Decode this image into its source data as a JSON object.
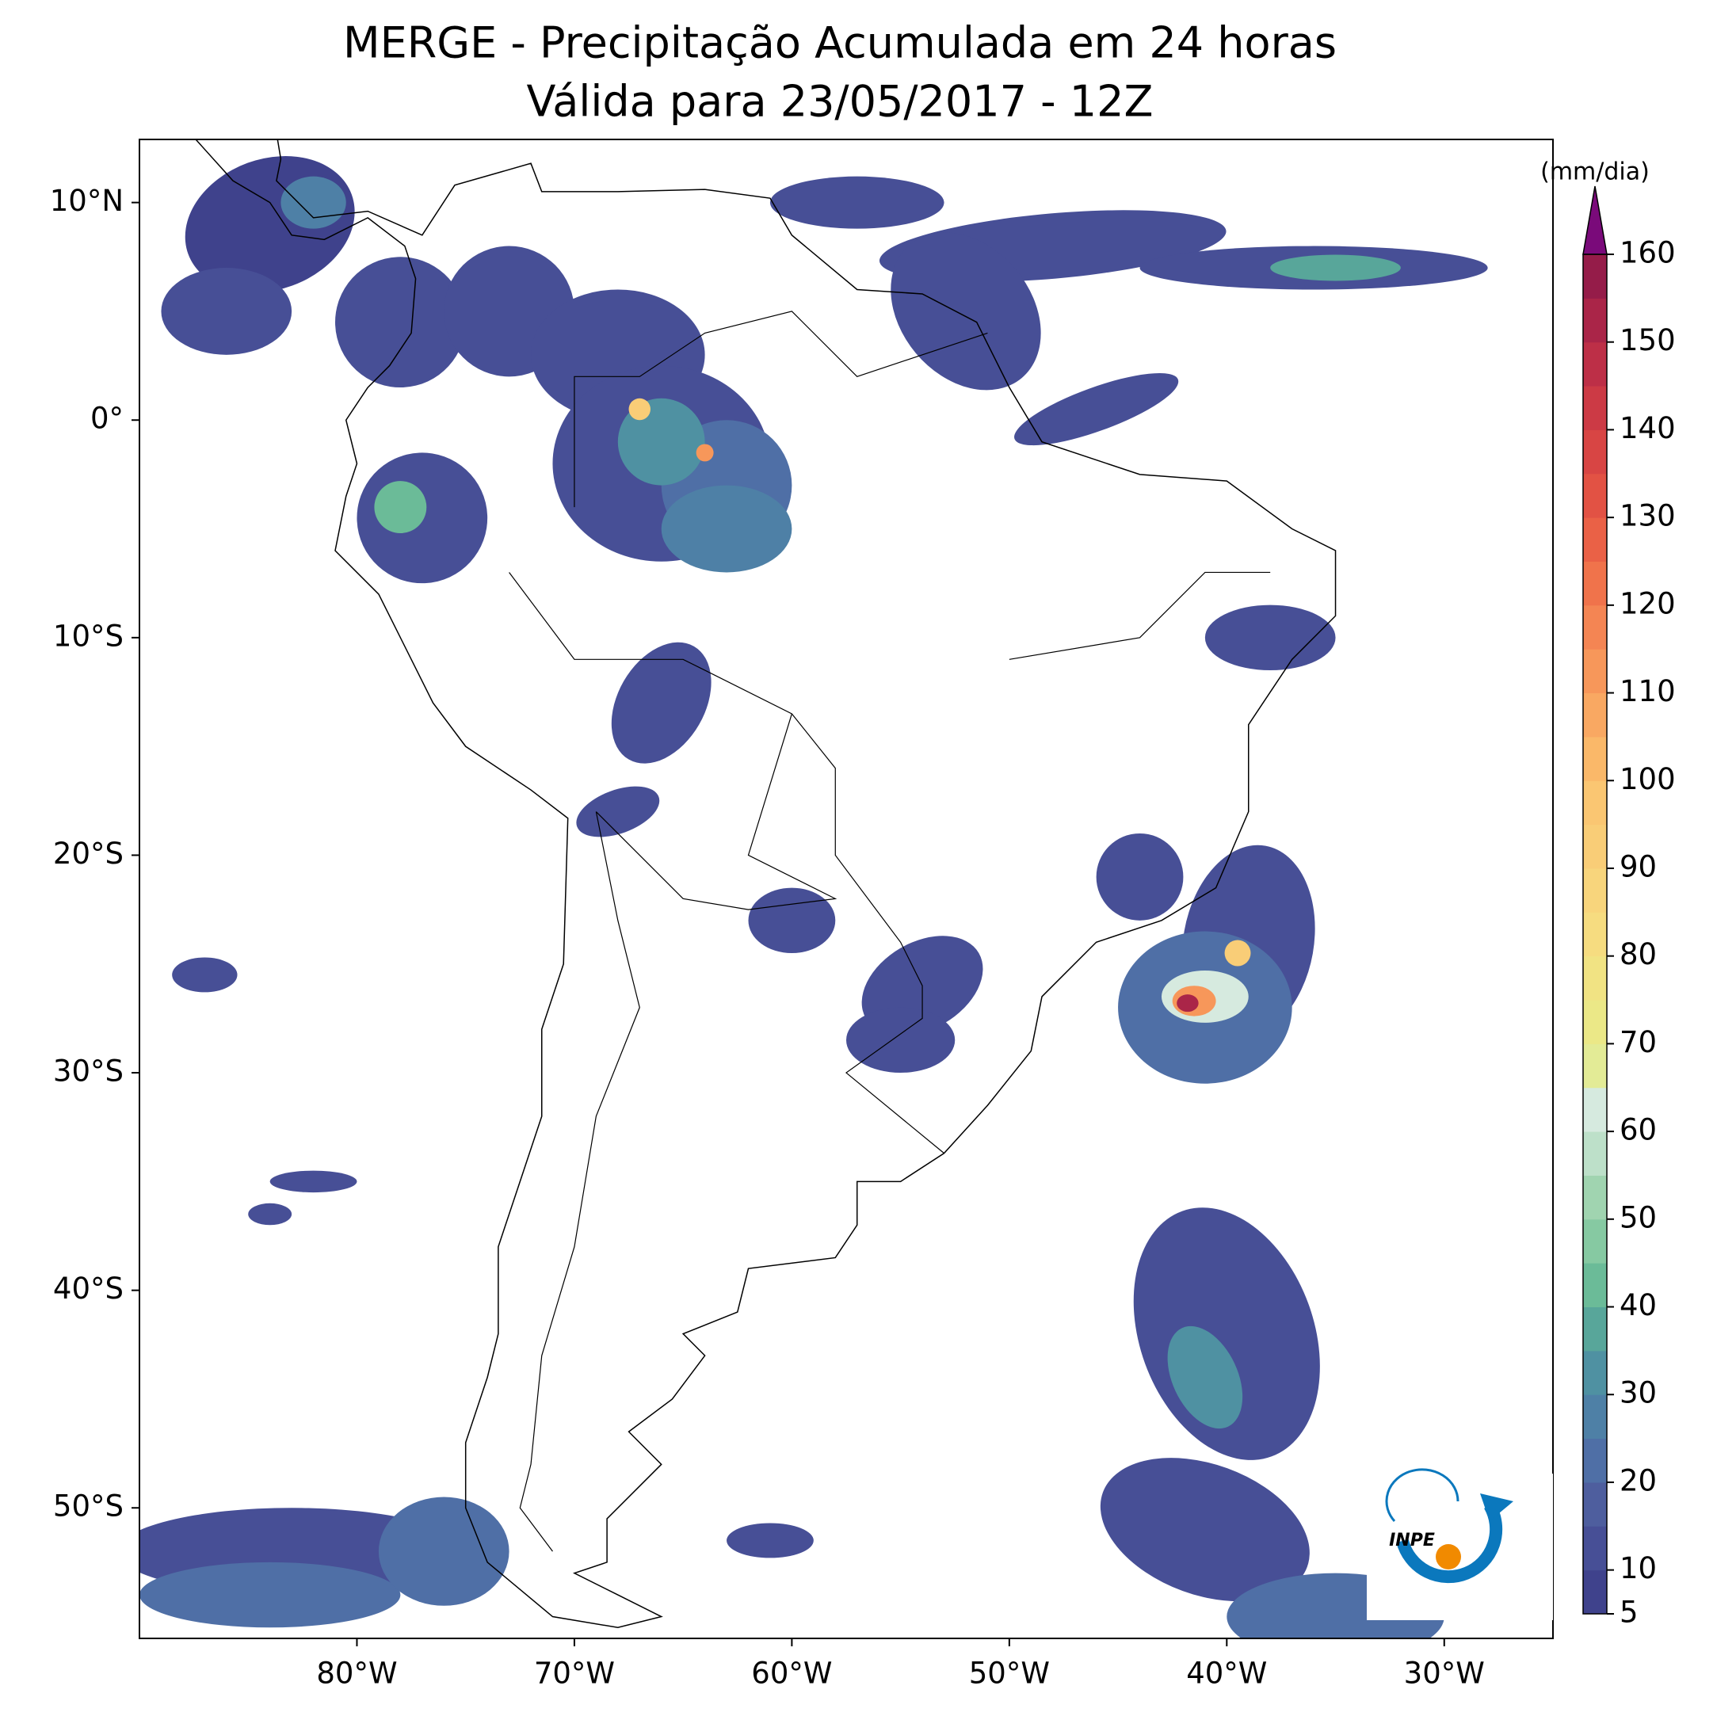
{
  "chart_data": {
    "type": "map",
    "title": "MERGE - Precipitação Acumulada em 24 horas",
    "subtitle": "Válida para 23/05/2017 - 12Z",
    "xlim": [
      -90,
      -25
    ],
    "ylim": [
      -56,
      12.9
    ],
    "xticks": [
      {
        "value": -80,
        "label": "80°W"
      },
      {
        "value": -70,
        "label": "70°W"
      },
      {
        "value": -60,
        "label": "60°W"
      },
      {
        "value": -50,
        "label": "50°W"
      },
      {
        "value": -40,
        "label": "40°W"
      },
      {
        "value": -30,
        "label": "30°W"
      }
    ],
    "yticks": [
      {
        "value": 10,
        "label": "10°N"
      },
      {
        "value": 0,
        "label": "0°"
      },
      {
        "value": -10,
        "label": "10°S"
      },
      {
        "value": -20,
        "label": "20°S"
      },
      {
        "value": -30,
        "label": "30°S"
      },
      {
        "value": -40,
        "label": "40°S"
      },
      {
        "value": -50,
        "label": "50°S"
      }
    ],
    "colorbar": {
      "label": "(mm/dia)",
      "lim": [
        5,
        160
      ],
      "ticks": [
        5,
        10,
        20,
        30,
        40,
        50,
        60,
        70,
        80,
        90,
        100,
        110,
        120,
        130,
        140,
        150,
        160
      ],
      "colors": [
        "#3f428c",
        "#474f96",
        "#4e5e9e",
        "#4f6fa6",
        "#4e80a6",
        "#4f91a2",
        "#58a69a",
        "#6bbb98",
        "#86c9a2",
        "#a0d4b0",
        "#bde0c9",
        "#d6eadf",
        "#e3eb96",
        "#ebe887",
        "#f1e383",
        "#f6dc80",
        "#f8d57c",
        "#f9cd77",
        "#fac672",
        "#fab869",
        "#f9a862",
        "#f7975a",
        "#f48553",
        "#f0734b",
        "#ea6146",
        "#e25244",
        "#d84544",
        "#cc3a45",
        "#bd2f47",
        "#aa2548",
        "#951c49"
      ],
      "extend_color": "#7a0a7a"
    },
    "logo": "INPE"
  }
}
